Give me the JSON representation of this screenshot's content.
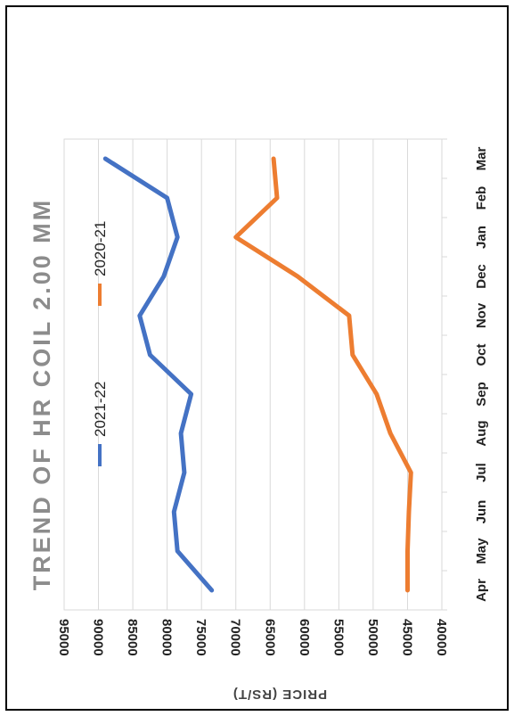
{
  "chart_data": {
    "type": "line",
    "title": "TREND OF HR COIL 2.00 MM",
    "ylabel": "PRICE (RS/T)",
    "xlabel": "",
    "categories": [
      "Apr",
      "May",
      "Jun",
      "Jul",
      "Aug",
      "Sep",
      "Oct",
      "Nov",
      "Dec",
      "Jan",
      "Feb",
      "Mar"
    ],
    "ylim": [
      40000,
      95000
    ],
    "yticks": [
      40000,
      45000,
      50000,
      55000,
      60000,
      65000,
      70000,
      75000,
      80000,
      85000,
      90000,
      95000
    ],
    "grid": true,
    "legend_position": "top",
    "series": [
      {
        "name": "2021-22",
        "color": "#4472c4",
        "values": [
          73500,
          78500,
          79000,
          77500,
          78000,
          76500,
          82500,
          84000,
          80500,
          78500,
          80000,
          89000
        ]
      },
      {
        "name": "2020-21",
        "color": "#ed7d31",
        "values": [
          45000,
          45000,
          44800,
          44500,
          47500,
          49500,
          53000,
          53500,
          61000,
          70000,
          64000,
          64500
        ]
      }
    ]
  }
}
